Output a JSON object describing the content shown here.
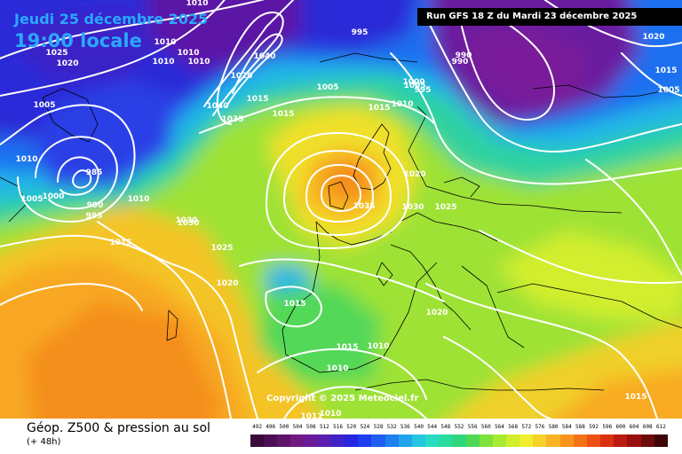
{
  "header": {
    "date": "Jeudi 25 décembre 2025",
    "time": "19:00 locale",
    "run": "Run GFS 18 Z du Mardi 23 décembre 2025"
  },
  "copyright": "Copyright © 2025 Meteociel.fr",
  "footer": {
    "title": "Géop. Z500 & pression au sol",
    "subtitle": "(+ 48h)"
  },
  "legend": {
    "ticks": [
      "492",
      "496",
      "500",
      "504",
      "508",
      "512",
      "516",
      "520",
      "524",
      "528",
      "532",
      "536",
      "540",
      "544",
      "548",
      "552",
      "556",
      "560",
      "564",
      "568",
      "572",
      "576",
      "580",
      "584",
      "588",
      "592",
      "596",
      "600",
      "604",
      "608",
      "612"
    ],
    "colors": [
      "#3a0a3a",
      "#4c0f54",
      "#5e146b",
      "#701a83",
      "#6b1a9a",
      "#5a1fb0",
      "#3f22c8",
      "#2526dd",
      "#1e3cf0",
      "#1f5ef0",
      "#1f80f0",
      "#22a4ec",
      "#26c6e0",
      "#28dcc4",
      "#29dca0",
      "#30d67c",
      "#50d854",
      "#7ee23c",
      "#a8ea30",
      "#d0ee2c",
      "#f0ee2e",
      "#f6d22a",
      "#f8b424",
      "#f8941c",
      "#f47216",
      "#ec5012",
      "#d83010",
      "#bc1a10",
      "#98100e",
      "#6e0a0c",
      "#3c0606"
    ]
  },
  "pressure_labels": [
    "1010",
    "1010",
    "1010",
    "1010",
    "1040",
    "1020",
    "1010",
    "1025",
    "1020",
    "995",
    "1005",
    "1040",
    "1015",
    "1015",
    "1005",
    "1035",
    "985",
    "990",
    "995",
    "1000",
    "1005",
    "1010",
    "990",
    "1020",
    "1015",
    "1020",
    "1035",
    "1030",
    "1025",
    "1030",
    "1020",
    "1025",
    "1015",
    "1015",
    "1010",
    "1010",
    "1015",
    "1005",
    "1010",
    "1015",
    "1030",
    "1000",
    "995",
    "1005",
    "1010",
    "990",
    "1020",
    "1015",
    "1011",
    "1010"
  ],
  "icons": {
    "map": "synoptic-map"
  }
}
